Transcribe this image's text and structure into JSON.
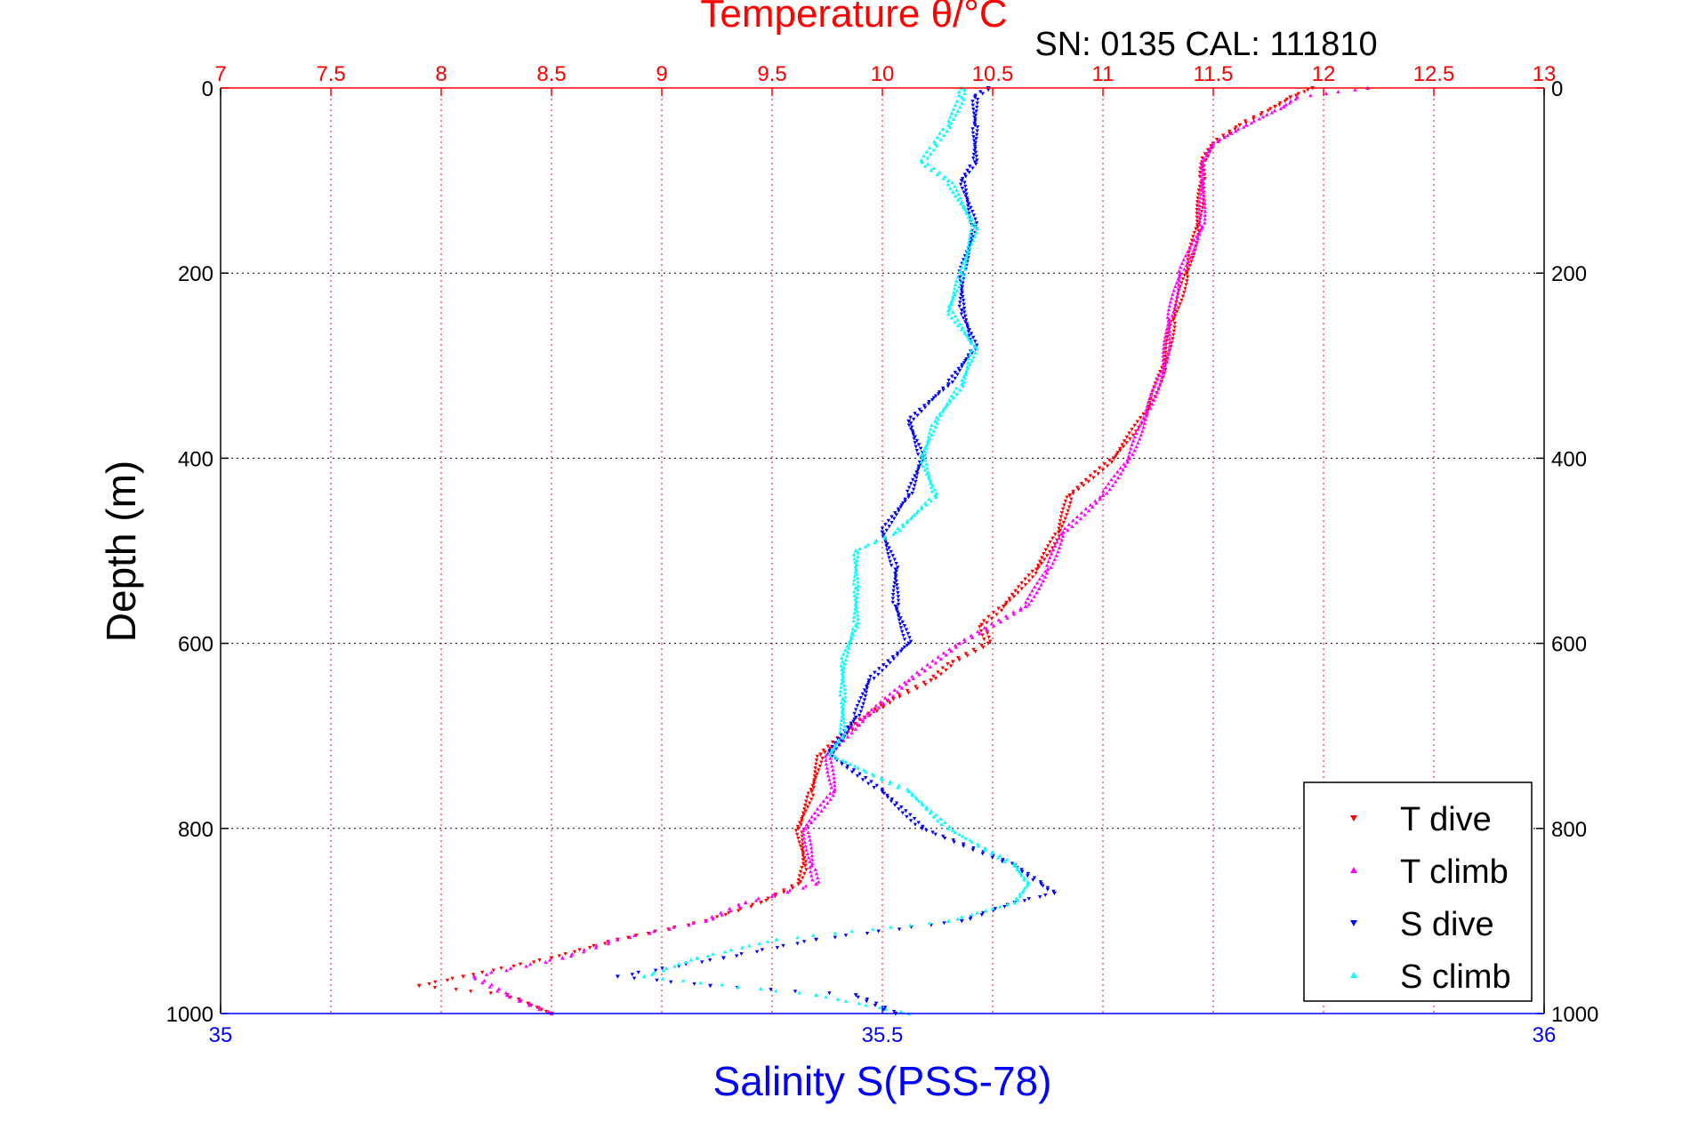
{
  "chart_data": {
    "type": "scatter",
    "top_title": "Temperature θ/°C",
    "subtitle": "SN: 0135  CAL: 111810",
    "xlabel": "Salinity S(PSS-78)",
    "ylabel": "Depth (m)",
    "temperature_axis": {
      "range": [
        7,
        13
      ],
      "ticks": [
        "7",
        "7.5",
        "8",
        "8.5",
        "9",
        "9.5",
        "10",
        "10.5",
        "11",
        "11.5",
        "12",
        "12.5",
        "13"
      ]
    },
    "salinity_axis": {
      "range": [
        35,
        36
      ],
      "ticks": [
        "35",
        "35.5",
        "36"
      ]
    },
    "depth_axis": {
      "range": [
        0,
        1000
      ],
      "reversed": true,
      "ticks": [
        "0",
        "200",
        "400",
        "600",
        "800",
        "1000"
      ]
    },
    "grid": true,
    "legend_position": "bottom-right",
    "colors": {
      "temperature_axis": "#ff0000",
      "salinity_axis": "#0000ff",
      "t_dive": "#ff0000",
      "t_climb": "#ff00ff",
      "s_dive": "#0000ff",
      "s_climb": "#00ffff"
    },
    "series": [
      {
        "name": "T dive",
        "axis": "temperature",
        "color": "#ff0000",
        "depth": [
          0,
          10,
          20,
          40,
          60,
          80,
          100,
          150,
          200,
          250,
          300,
          350,
          400,
          440,
          480,
          520,
          560,
          580,
          600,
          620,
          640,
          660,
          680,
          700,
          720,
          760,
          800,
          840,
          860,
          880,
          900,
          920,
          940,
          960,
          970,
          980,
          1000
        ],
        "values": [
          11.95,
          11.85,
          11.78,
          11.62,
          11.5,
          11.45,
          11.45,
          11.43,
          11.38,
          11.32,
          11.28,
          11.2,
          11.05,
          10.85,
          10.8,
          10.7,
          10.55,
          10.45,
          10.48,
          10.32,
          10.22,
          10.05,
          9.92,
          9.82,
          9.72,
          9.68,
          9.62,
          9.65,
          9.62,
          9.45,
          9.2,
          8.8,
          8.5,
          8.1,
          7.9,
          8.3,
          8.5
        ]
      },
      {
        "name": "T climb",
        "axis": "temperature",
        "color": "#ff00ff",
        "depth": [
          0,
          10,
          20,
          40,
          60,
          80,
          100,
          150,
          200,
          250,
          300,
          350,
          400,
          440,
          480,
          520,
          560,
          600,
          640,
          680,
          720,
          760,
          800,
          840,
          860,
          880,
          900,
          920,
          940,
          960,
          980,
          1000
        ],
        "values": [
          12.2,
          11.88,
          11.82,
          11.65,
          11.5,
          11.45,
          11.45,
          11.45,
          11.35,
          11.3,
          11.28,
          11.2,
          11.12,
          11.0,
          10.82,
          10.75,
          10.65,
          10.35,
          10.12,
          9.92,
          9.75,
          9.78,
          9.65,
          9.68,
          9.7,
          9.38,
          9.2,
          8.8,
          8.55,
          8.15,
          8.3,
          8.5
        ]
      },
      {
        "name": "S dive",
        "axis": "salinity",
        "color": "#0000ff",
        "depth": [
          0,
          10,
          40,
          80,
          100,
          150,
          200,
          240,
          280,
          320,
          360,
          400,
          440,
          480,
          520,
          560,
          600,
          640,
          680,
          720,
          760,
          800,
          840,
          860,
          870,
          880,
          900,
          920,
          940,
          960,
          970,
          980,
          1000
        ],
        "values": [
          35.58,
          35.57,
          35.57,
          35.57,
          35.56,
          35.57,
          35.56,
          35.56,
          35.57,
          35.55,
          35.52,
          35.53,
          35.52,
          35.5,
          35.51,
          35.51,
          35.52,
          35.49,
          35.48,
          35.46,
          35.5,
          35.53,
          35.6,
          35.62,
          35.63,
          35.6,
          35.56,
          35.45,
          35.38,
          35.3,
          35.37,
          35.48,
          35.51
        ]
      },
      {
        "name": "S climb",
        "axis": "salinity",
        "color": "#00ffff",
        "depth": [
          0,
          10,
          40,
          60,
          80,
          100,
          150,
          200,
          240,
          280,
          320,
          360,
          400,
          440,
          480,
          500,
          540,
          580,
          620,
          660,
          700,
          720,
          760,
          800,
          840,
          860,
          880,
          900,
          920,
          940,
          960,
          980,
          1000
        ],
        "values": [
          35.56,
          35.56,
          35.55,
          35.54,
          35.53,
          35.55,
          35.57,
          35.56,
          35.55,
          35.57,
          35.56,
          35.54,
          35.53,
          35.54,
          35.51,
          35.48,
          35.48,
          35.48,
          35.47,
          35.47,
          35.47,
          35.46,
          35.52,
          35.55,
          35.6,
          35.61,
          35.6,
          35.55,
          35.42,
          35.36,
          35.32,
          35.45,
          35.52
        ]
      }
    ]
  }
}
